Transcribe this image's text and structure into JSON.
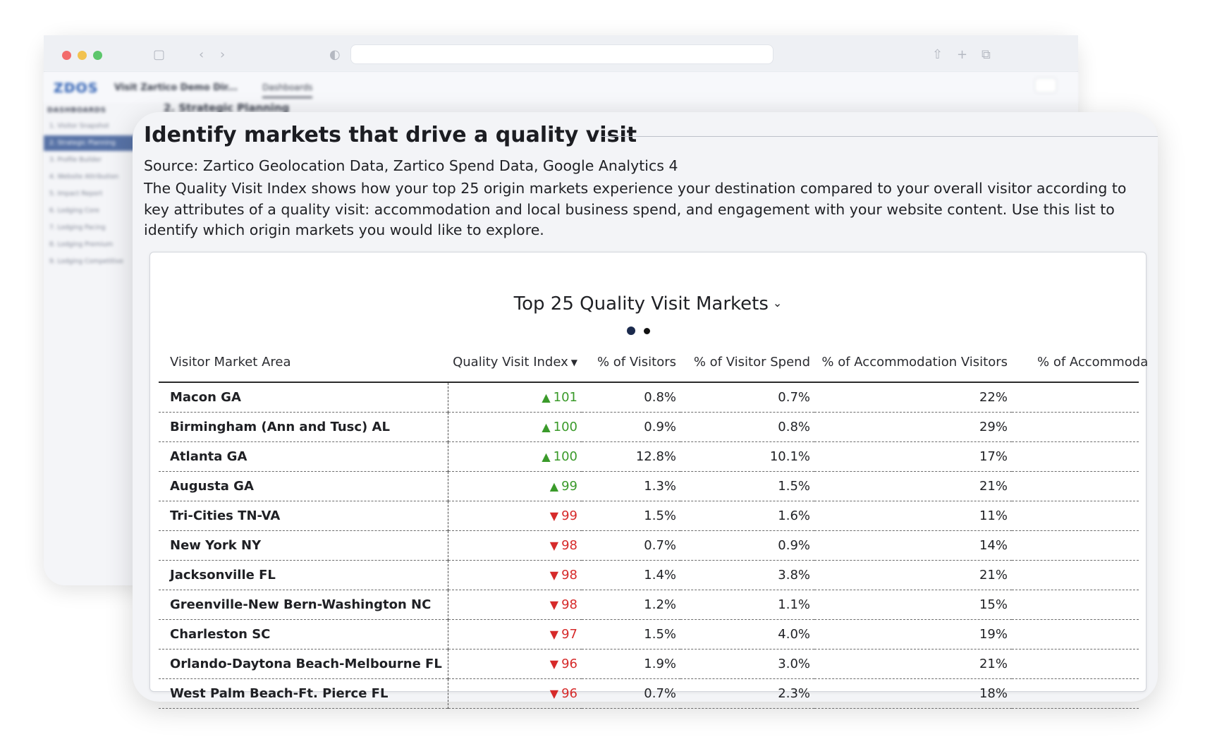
{
  "browser": {
    "app_logo": "ZDOS",
    "app_title": "Visit Zartico Demo Dir...",
    "tab_label": "Dashboards",
    "breadcrumb": "2. Strategic Planning",
    "sidebar_title": "DASHBOARDS",
    "sidebar_items": [
      "1. Visitor Snapshot",
      "2. Strategic Planning",
      "3. Profile Builder",
      "4. Website Attribution",
      "5. Impact Report",
      "6. Lodging Core",
      "7. Lodging Pacing",
      "8. Lodging Premium",
      "9. Lodging Competitive"
    ]
  },
  "panel": {
    "title": "Identify markets that drive a quality visit",
    "source": "Source: Zartico Geolocation Data, Zartico Spend Data, Google Analytics 4",
    "description": "The Quality Visit Index shows how your top 25 origin markets experience your destination compared to your overall visitor according to key attributes of a quality visit: accommodation and local business spend, and engagement with your website content. Use this list to identify which origin markets you would like to explore."
  },
  "table": {
    "title": "Top 25 Quality Visit Markets",
    "columns": [
      "Visitor Market Area",
      "Quality Visit Index",
      "% of Visitors",
      "% of Visitor Spend",
      "% of Accommodation Visitors",
      "% of Accommoda"
    ],
    "rows": [
      {
        "market": "Macon GA",
        "trend": "up",
        "index": "101",
        "visitors": "0.8%",
        "spend": "0.7%",
        "accom": "22%"
      },
      {
        "market": "Birmingham (Ann and Tusc) AL",
        "trend": "up",
        "index": "100",
        "visitors": "0.9%",
        "spend": "0.8%",
        "accom": "29%"
      },
      {
        "market": "Atlanta GA",
        "trend": "up",
        "index": "100",
        "visitors": "12.8%",
        "spend": "10.1%",
        "accom": "17%"
      },
      {
        "market": "Augusta GA",
        "trend": "up",
        "index": "99",
        "visitors": "1.3%",
        "spend": "1.5%",
        "accom": "21%"
      },
      {
        "market": "Tri-Cities TN-VA",
        "trend": "down",
        "index": "99",
        "visitors": "1.5%",
        "spend": "1.6%",
        "accom": "11%"
      },
      {
        "market": "New York NY",
        "trend": "down",
        "index": "98",
        "visitors": "0.7%",
        "spend": "0.9%",
        "accom": "14%"
      },
      {
        "market": "Jacksonville FL",
        "trend": "down",
        "index": "98",
        "visitors": "1.4%",
        "spend": "3.8%",
        "accom": "21%"
      },
      {
        "market": "Greenville-New Bern-Washington NC",
        "trend": "down",
        "index": "98",
        "visitors": "1.2%",
        "spend": "1.1%",
        "accom": "15%"
      },
      {
        "market": "Charleston SC",
        "trend": "down",
        "index": "97",
        "visitors": "1.5%",
        "spend": "4.0%",
        "accom": "19%"
      },
      {
        "market": "Orlando-Daytona Beach-Melbourne FL",
        "trend": "down",
        "index": "96",
        "visitors": "1.9%",
        "spend": "3.0%",
        "accom": "21%"
      },
      {
        "market": "West Palm Beach-Ft. Pierce FL",
        "trend": "down",
        "index": "96",
        "visitors": "0.7%",
        "spend": "2.3%",
        "accom": "18%"
      }
    ]
  },
  "colors": {
    "up": "#3a9a2a",
    "down": "#d62a2a",
    "pager_active": "#1b2a4d"
  },
  "icons": {
    "sort": "sort-down-icon",
    "dropdown": "chevron-down-icon",
    "trend_up": "triangle-up-icon",
    "trend_down": "triangle-down-icon"
  }
}
